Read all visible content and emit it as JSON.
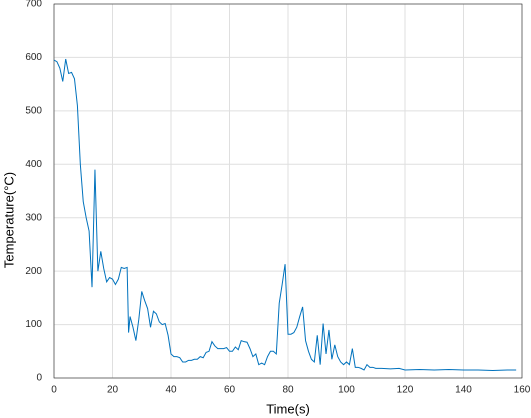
{
  "chart_data": {
    "type": "line",
    "x_label": "Time(s)",
    "y_label": "Temperature(°C)",
    "x": [
      0,
      1,
      2,
      3,
      4,
      5,
      6,
      7,
      8,
      9,
      10,
      11,
      12,
      13,
      14,
      15,
      16,
      17,
      18,
      19,
      20,
      21,
      22,
      23,
      24,
      25,
      25.5,
      26,
      27,
      28,
      29,
      30,
      31,
      32,
      33,
      34,
      35,
      36,
      37,
      38,
      39,
      40,
      41,
      42,
      43,
      44,
      45,
      46,
      47,
      48,
      49,
      50,
      51,
      52,
      53,
      54,
      55,
      56,
      57,
      58,
      59,
      60,
      61,
      62,
      63,
      64,
      65,
      66,
      67,
      68,
      69,
      70,
      71,
      72,
      73,
      74,
      75,
      76,
      77,
      78,
      79,
      80,
      81,
      82,
      83,
      84,
      85,
      86,
      87,
      88,
      89,
      90,
      91,
      92,
      93,
      94,
      95,
      96,
      97,
      98,
      99,
      100,
      101,
      102,
      103,
      104,
      105,
      106,
      107,
      108,
      109,
      110,
      112,
      115,
      118,
      120,
      125,
      130,
      135,
      140,
      145,
      150,
      155,
      158
    ],
    "series": [
      {
        "color": "#0072bd",
        "values": [
          595,
          592,
          580,
          555,
          597,
          570,
          572,
          560,
          510,
          400,
          330,
          300,
          275,
          170,
          390,
          200,
          237,
          205,
          180,
          188,
          185,
          175,
          185,
          207,
          205,
          207,
          85,
          115,
          95,
          70,
          110,
          162,
          145,
          130,
          95,
          125,
          120,
          105,
          100,
          102,
          80,
          45,
          40,
          40,
          38,
          30,
          30,
          33,
          33,
          35,
          35,
          40,
          38,
          48,
          50,
          68,
          60,
          55,
          55,
          55,
          57,
          50,
          50,
          58,
          53,
          70,
          68,
          67,
          55,
          40,
          45,
          25,
          28,
          25,
          40,
          50,
          50,
          45,
          140,
          175,
          213,
          82,
          82,
          85,
          95,
          115,
          133,
          70,
          50,
          35,
          30,
          80,
          25,
          102,
          45,
          90,
          35,
          62,
          40,
          30,
          25,
          30,
          25,
          55,
          20,
          20,
          18,
          15,
          25,
          20,
          20,
          18,
          18,
          17,
          18,
          15,
          16,
          15,
          16,
          15,
          15,
          14,
          15,
          15
        ]
      }
    ],
    "xlim": [
      0,
      160
    ],
    "ylim": [
      0,
      700
    ],
    "xticks": [
      0,
      20,
      40,
      60,
      80,
      100,
      120,
      140,
      160
    ],
    "yticks": [
      0,
      100,
      200,
      300,
      400,
      500,
      600,
      700
    ],
    "grid": true
  }
}
